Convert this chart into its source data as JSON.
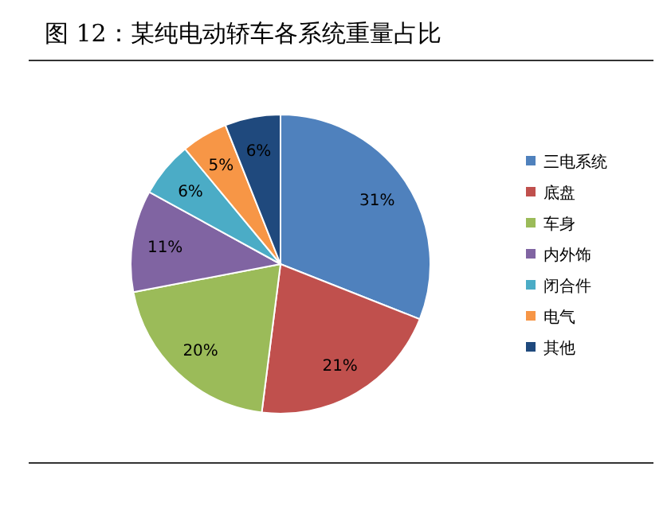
{
  "chart_data": {
    "type": "pie",
    "title": "图 12：某纯电动轿车各系统重量占比",
    "categories": [
      "三电系统",
      "底盘",
      "车身",
      "内外饰",
      "闭合件",
      "电气",
      "其他"
    ],
    "values": [
      31,
      21,
      20,
      11,
      6,
      5,
      6
    ],
    "value_labels": [
      "31%",
      "21%",
      "20%",
      "11%",
      "6%",
      "5%",
      "6%"
    ],
    "colors": [
      "#4f81bd",
      "#c0504d",
      "#9bbb59",
      "#8064a2",
      "#4bacc6",
      "#f79646",
      "#1f497d"
    ],
    "legend": "right"
  }
}
